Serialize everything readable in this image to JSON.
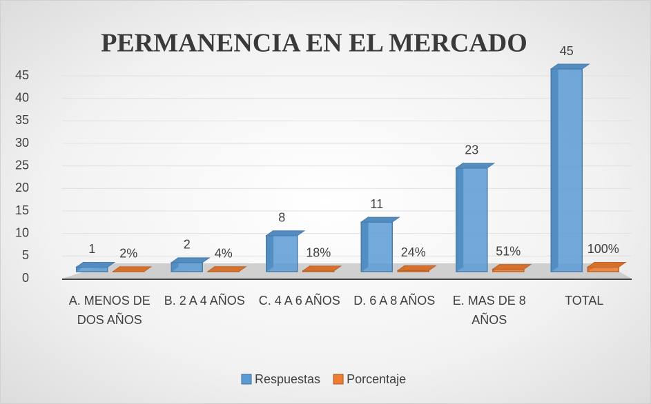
{
  "chart_data": {
    "type": "bar3d",
    "title": "PERMANENCIA EN EL MERCADO",
    "categories": [
      "A. MENOS DE DOS AÑOS",
      "B. 2 A 4 AÑOS",
      "C. 4 A 6 AÑOS",
      "D. 6 A 8 AÑOS",
      "E. MAS DE 8 AÑOS",
      "TOTAL"
    ],
    "series": [
      {
        "name": "Respuestas",
        "color": "#5b9bd5",
        "values": [
          1,
          2,
          8,
          11,
          23,
          45
        ]
      },
      {
        "name": "Porcentaje",
        "color": "#ed7d31",
        "values": [
          0.02,
          0.04,
          0.18,
          0.24,
          0.51,
          1
        ],
        "value_labels": [
          "2%",
          "4%",
          "18%",
          "24%",
          "51%",
          "100%"
        ]
      }
    ],
    "ylim": [
      0,
      45
    ],
    "yticks": [
      0,
      5,
      10,
      15,
      20,
      25,
      30,
      35,
      40,
      45
    ],
    "grid": true,
    "legend": "bottom"
  }
}
